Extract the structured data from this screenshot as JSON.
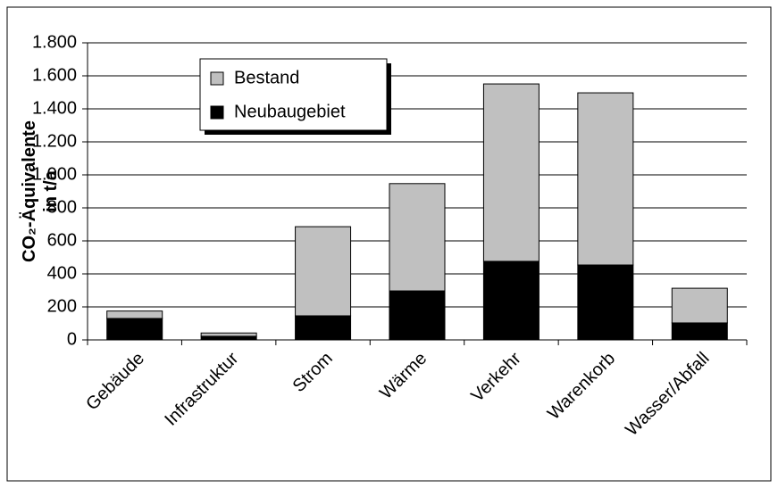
{
  "chart_data": {
    "type": "stacked_bar",
    "ylabel": [
      "CO₂-Äquivalente",
      "in t/a"
    ],
    "categories": [
      "Gebäude",
      "Infrastruktur",
      "Strom",
      "Wärme",
      "Verkehr",
      "Warenkorb",
      "Wasser/Abfall"
    ],
    "series": [
      {
        "name": "Bestand",
        "color": "#c0c0c0",
        "values": [
          45,
          20,
          540,
          650,
          1075,
          1043,
          210
        ]
      },
      {
        "name": "Neubaugebiet",
        "color": "#000000",
        "values": [
          130,
          22,
          146,
          297,
          476,
          454,
          103
        ]
      }
    ],
    "ylim": [
      0,
      1800
    ],
    "yticks": [
      0,
      200,
      400,
      600,
      800,
      {
        "value": 1000,
        "label": "1.000"
      },
      {
        "value": 1200,
        "label": "1.200"
      },
      {
        "value": 1400,
        "label": "1.400"
      },
      {
        "value": 1600,
        "label": "1.600"
      },
      {
        "value": 1800,
        "label": "1.800"
      }
    ],
    "grid": true,
    "legend": "top-left"
  }
}
